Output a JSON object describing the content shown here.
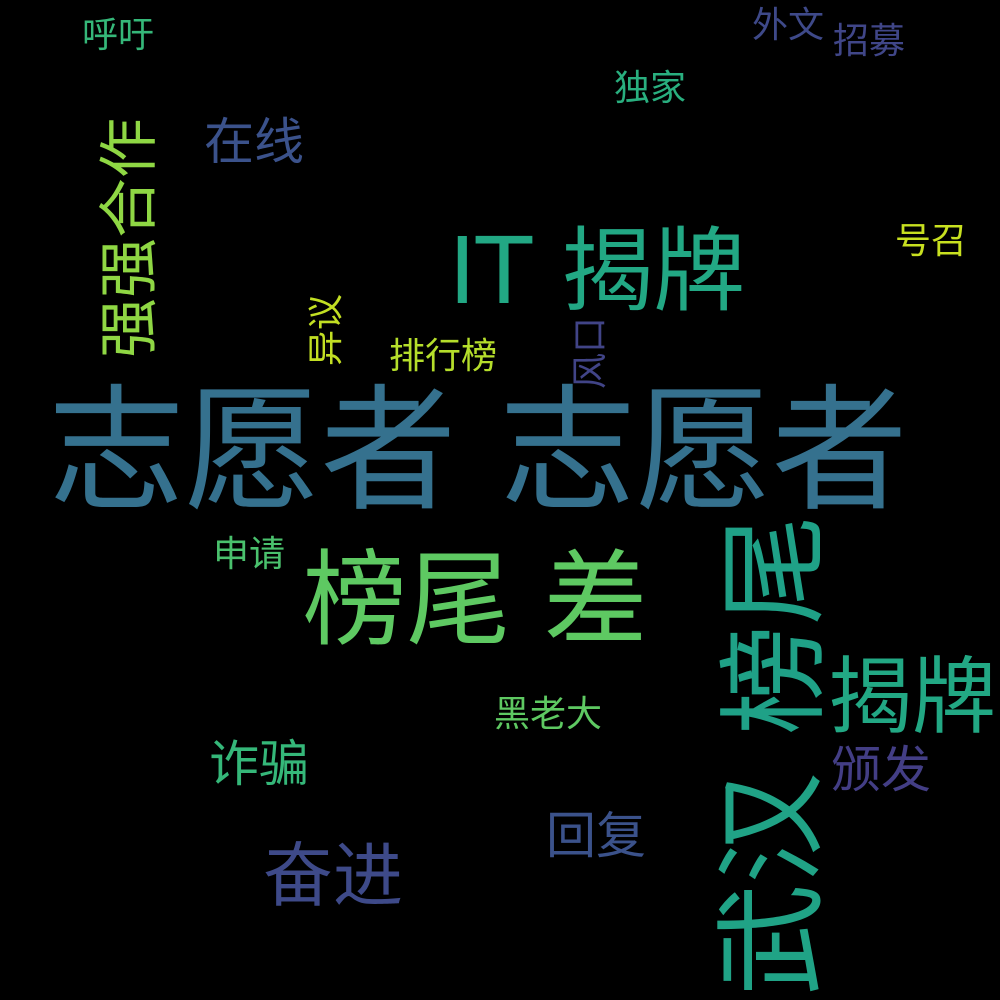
{
  "cloud": {
    "background": "#000000",
    "words": [
      {
        "text": "志愿者 志愿者",
        "color": "#35718e"
      },
      {
        "text": "IT 揭牌",
        "color": "#22a884"
      },
      {
        "text": "榜尾 差",
        "color": "#5ec962"
      },
      {
        "text": "榜尾",
        "color": "#1fa187"
      },
      {
        "text": "揭牌",
        "color": "#22a884"
      },
      {
        "text": "武汉",
        "color": "#20a386"
      },
      {
        "text": "强强合作",
        "color": "#8fd744"
      },
      {
        "text": "在线",
        "color": "#3b528b"
      },
      {
        "text": "奋进",
        "color": "#3e4a89"
      },
      {
        "text": "诈骗",
        "color": "#35b779"
      },
      {
        "text": "回复",
        "color": "#3b528b"
      },
      {
        "text": "颁发",
        "color": "#433e85"
      },
      {
        "text": "申请",
        "color": "#4ac16d"
      },
      {
        "text": "黑老大",
        "color": "#5ec962"
      },
      {
        "text": "排行榜",
        "color": "#b5de2b"
      },
      {
        "text": "异议",
        "color": "#c2df23"
      },
      {
        "text": "风口",
        "color": "#414487"
      },
      {
        "text": "号召",
        "color": "#c8e020"
      },
      {
        "text": "独家",
        "color": "#29af7f"
      },
      {
        "text": "呼吁",
        "color": "#35b779"
      },
      {
        "text": "外文",
        "color": "#3e4989"
      },
      {
        "text": "招募",
        "color": "#404688"
      }
    ]
  }
}
